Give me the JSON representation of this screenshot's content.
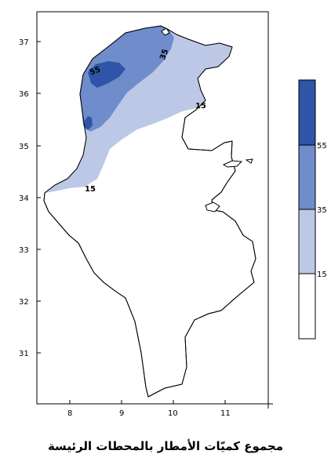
{
  "caption": "مجموع كميّات الأمطار بالمحطات الرئيسة",
  "x_axis": {
    "ticks": [
      "8",
      "9",
      "10",
      "11"
    ]
  },
  "y_axis": {
    "ticks": [
      "37",
      "36",
      "35",
      "34",
      "33",
      "32",
      "31"
    ]
  },
  "contour_labels": {
    "c55": "55",
    "c35": "35",
    "c15_east": "15",
    "c15_west": "15"
  },
  "legend": {
    "breaks": [
      "55",
      "35",
      "15"
    ],
    "classes": [
      {
        "range": ">55",
        "color": "#2f55a8"
      },
      {
        "range": "35-55",
        "color": "#6f8ccb"
      },
      {
        "range": "15-35",
        "color": "#bcc8e6"
      },
      {
        "range": "<15",
        "color": "#ffffff"
      }
    ]
  },
  "colors": {
    "zone_gt55": "#2f55a8",
    "zone_35_55": "#6f8ccb",
    "zone_15_35": "#bcc8e6",
    "border": "#000000"
  }
}
